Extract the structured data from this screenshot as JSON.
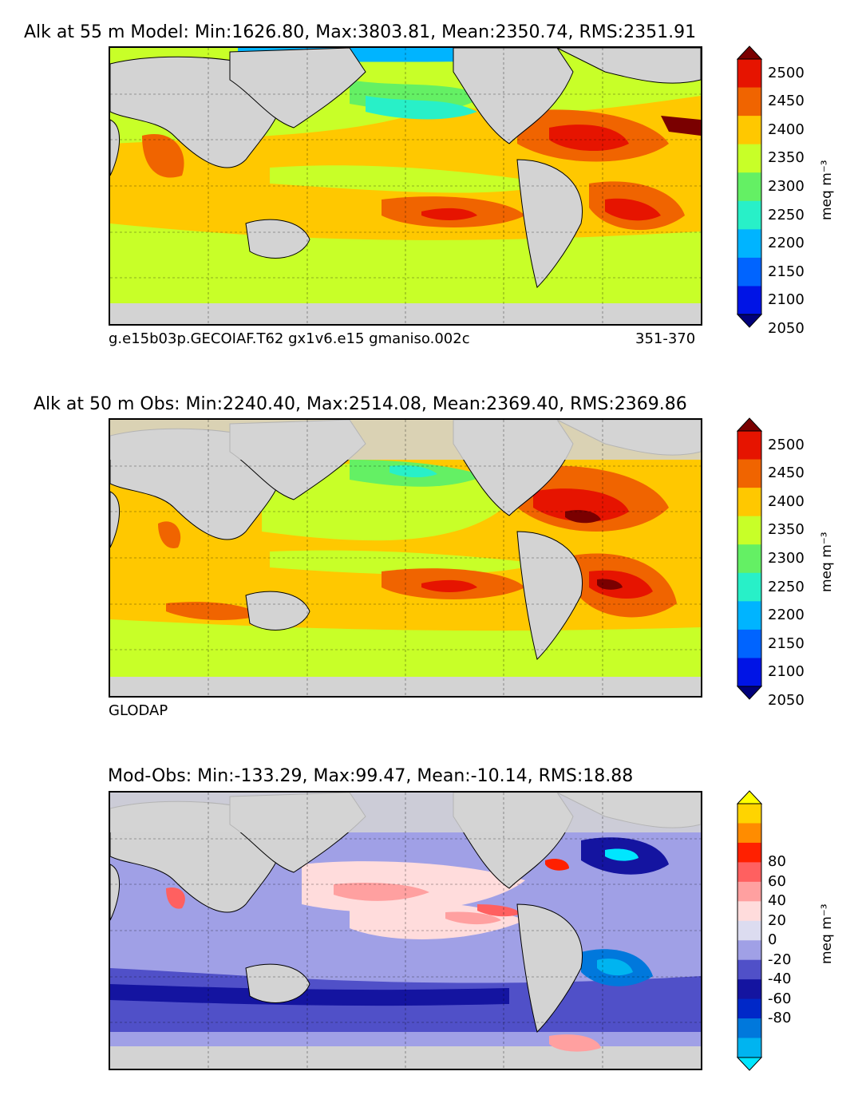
{
  "panels": [
    {
      "title": "Alk at 55 m Model: Min:1626.80, Max:3803.81, Mean:2350.74, RMS:2351.91",
      "footer_left": "g.e15b03p.GECOIAF.T62 gx1v6.e15 gmaniso.002c",
      "footer_right": "351-370"
    },
    {
      "title": "Alk at 50 m Obs: Min:2240.40, Max:2514.08, Mean:2369.40, RMS:2369.86",
      "footer_left": "GLODAP",
      "footer_right": ""
    },
    {
      "title": "Mod-Obs: Min:-133.29, Max:99.47, Mean:-10.14, RMS:18.88",
      "footer_left": "",
      "footer_right": ""
    }
  ],
  "colorbars": [
    {
      "label": "meq m⁻³",
      "ticks": [
        "2500",
        "2450",
        "2400",
        "2350",
        "2300",
        "2250",
        "2200",
        "2150",
        "2100",
        "2050"
      ],
      "colors": [
        "#7a0000",
        "#e61400",
        "#f06400",
        "#ffc800",
        "#c8ff28",
        "#64f064",
        "#28f0c8",
        "#00b4ff",
        "#0064ff",
        "#0014e6",
        "#00007a"
      ]
    },
    {
      "label": "meq m⁻³",
      "ticks": [
        "2500",
        "2450",
        "2400",
        "2350",
        "2300",
        "2250",
        "2200",
        "2150",
        "2100",
        "2050"
      ],
      "colors": [
        "#7a0000",
        "#e61400",
        "#f06400",
        "#ffc800",
        "#c8ff28",
        "#64f064",
        "#28f0c8",
        "#00b4ff",
        "#0064ff",
        "#0014e6",
        "#00007a"
      ]
    },
    {
      "label": "meq m⁻³",
      "ticks": [
        "80",
        "60",
        "40",
        "20",
        "0",
        "-20",
        "-40",
        "-60",
        "-80"
      ],
      "colors": [
        "#ffff00",
        "#ffd400",
        "#ff8c00",
        "#ff2000",
        "#ff6060",
        "#ffa0a0",
        "#ffdcdc",
        "#dcdcf0",
        "#a0a0e6",
        "#5050c8",
        "#1414a0",
        "#0028c8",
        "#0078dc",
        "#00b4f0",
        "#00e6ff"
      ]
    }
  ],
  "chart_data": [
    {
      "type": "heatmap",
      "title": "Alk at 55 m Model: Min:1626.80, Max:3803.81, Mean:2350.74, RMS:2351.91",
      "variable": "Alkalinity",
      "depth_m": 55,
      "stats": {
        "min": 1626.8,
        "max": 3803.81,
        "mean": 2350.74,
        "rms": 2351.91
      },
      "colorbar_levels": [
        2050,
        2100,
        2150,
        2200,
        2250,
        2300,
        2350,
        2400,
        2450,
        2500
      ],
      "colorbar_units": "meq m⁻³",
      "extend": "both"
    },
    {
      "type": "heatmap",
      "title": "Alk at 50 m Obs: Min:2240.40, Max:2514.08, Mean:2369.40, RMS:2369.86",
      "variable": "Alkalinity",
      "depth_m": 50,
      "stats": {
        "min": 2240.4,
        "max": 2514.08,
        "mean": 2369.4,
        "rms": 2369.86
      },
      "colorbar_levels": [
        2050,
        2100,
        2150,
        2200,
        2250,
        2300,
        2350,
        2400,
        2450,
        2500
      ],
      "colorbar_units": "meq m⁻³",
      "extend": "both"
    },
    {
      "type": "heatmap",
      "title": "Mod-Obs: Min:-133.29, Max:99.47, Mean:-10.14, RMS:18.88",
      "variable": "Alkalinity difference",
      "stats": {
        "min": -133.29,
        "max": 99.47,
        "mean": -10.14,
        "rms": 18.88
      },
      "colorbar_levels": [
        -80,
        -60,
        -40,
        -20,
        0,
        20,
        40,
        60,
        80
      ],
      "colorbar_units": "meq m⁻³",
      "extend": "both"
    }
  ]
}
